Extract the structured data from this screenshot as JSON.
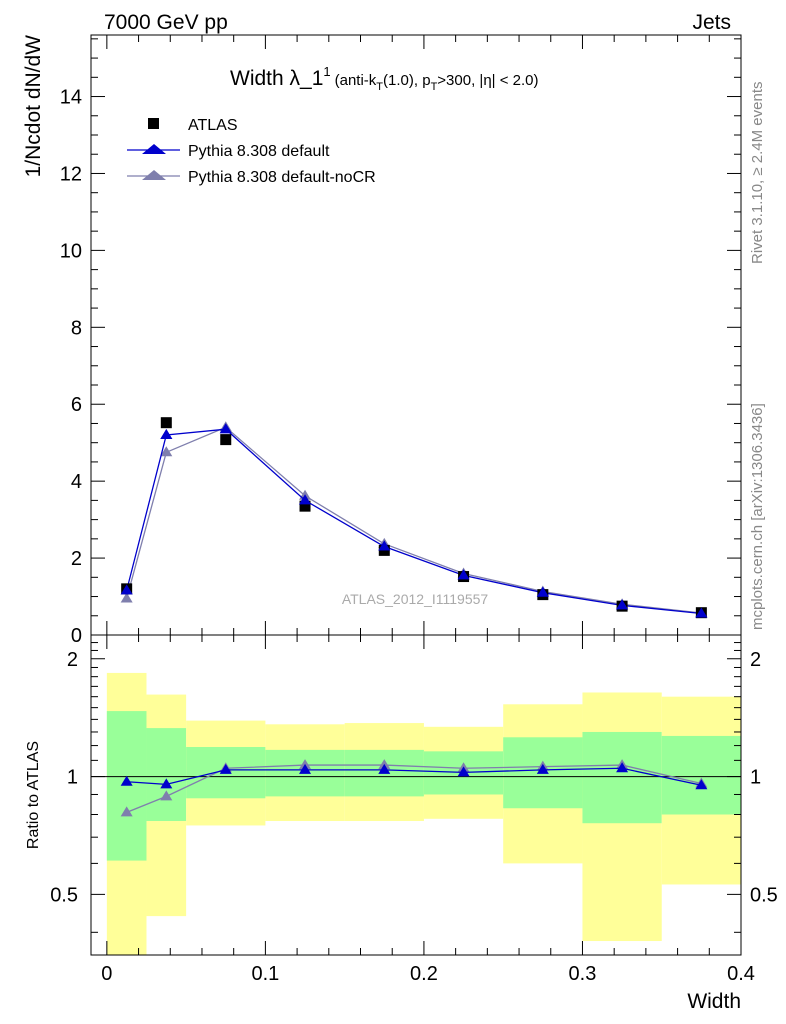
{
  "header": {
    "energy_label": "7000 GeV pp",
    "category_label": "Jets"
  },
  "side_labels": {
    "rivet": "Rivet 3.1.10, ≥ 2.4M events",
    "mcplots": "mcplots.cern.ch [arXiv:1306.3436]"
  },
  "watermark": "ATLAS_2012_I1119557",
  "colors": {
    "atlas": "#000000",
    "pythia_default": "#0000cc",
    "pythia_nocr": "#7f7fad",
    "band_inner": "#99ff99",
    "band_outer": "#ffff99"
  },
  "chart_data": [
    {
      "type": "scatter",
      "title_main": "Width λ_1",
      "title_sup": "1",
      "title_sub_parts": [
        "(anti-k",
        "T",
        "(1.0), p",
        "T",
        ">300, |η| < 2.0)"
      ],
      "ylabel": "1/Ncdot dN/dW",
      "xlim": [
        -0.01,
        0.4
      ],
      "ylim": [
        0,
        15.6
      ],
      "yticks": [
        0,
        2,
        4,
        6,
        8,
        10,
        12,
        14
      ],
      "ytick_labels": [
        "0",
        "2",
        "4",
        "6",
        "8",
        "10",
        "12",
        "14"
      ],
      "legend_position": "top-left",
      "x": [
        0.0125,
        0.0375,
        0.075,
        0.125,
        0.175,
        0.225,
        0.275,
        0.325,
        0.375
      ],
      "bin_edges": [
        0.0,
        0.025,
        0.05,
        0.1,
        0.15,
        0.2,
        0.25,
        0.3,
        0.35,
        0.4
      ],
      "series": [
        {
          "name": "ATLAS",
          "marker": "square",
          "values": [
            1.2,
            5.52,
            5.08,
            3.35,
            2.2,
            1.52,
            1.05,
            0.75,
            0.58
          ]
        },
        {
          "name": "Pythia 8.308 default",
          "marker": "triangle",
          "values": [
            1.16,
            5.2,
            5.35,
            3.5,
            2.3,
            1.55,
            1.1,
            0.77,
            0.56
          ]
        },
        {
          "name": "Pythia 8.308 default-noCR",
          "marker": "triangle",
          "values": [
            0.95,
            4.75,
            5.4,
            3.62,
            2.37,
            1.6,
            1.13,
            0.8,
            0.57
          ]
        }
      ]
    },
    {
      "type": "line",
      "ylabel": "Ratio to ATLAS",
      "xlabel": "Width",
      "xlim": [
        -0.01,
        0.4
      ],
      "ylim": [
        0.35,
        2.3
      ],
      "log_y": true,
      "yticks": [
        0.5,
        1,
        2
      ],
      "ytick_labels": [
        "0.5",
        "1",
        "2"
      ],
      "xticks": [
        0,
        0.1,
        0.2,
        0.3,
        0.4
      ],
      "xtick_labels": [
        "0",
        "0.1",
        "0.2",
        "0.3",
        "0.4"
      ],
      "bin_edges": [
        0.0,
        0.025,
        0.05,
        0.1,
        0.15,
        0.2,
        0.25,
        0.3,
        0.35,
        0.4
      ],
      "band_inner_lo": [
        0.61,
        0.77,
        0.88,
        0.89,
        0.89,
        0.9,
        0.83,
        0.76,
        0.8
      ],
      "band_inner_hi": [
        1.47,
        1.33,
        1.19,
        1.17,
        1.17,
        1.16,
        1.26,
        1.3,
        1.27
      ],
      "band_outer_lo": [
        0.34,
        0.44,
        0.75,
        0.77,
        0.77,
        0.78,
        0.6,
        0.38,
        0.53
      ],
      "band_outer_hi": [
        1.84,
        1.62,
        1.39,
        1.36,
        1.37,
        1.34,
        1.53,
        1.64,
        1.6
      ],
      "x": [
        0.0125,
        0.0375,
        0.075,
        0.125,
        0.175,
        0.225,
        0.275,
        0.325,
        0.375
      ],
      "series": [
        {
          "name": "Pythia 8.308 default",
          "values": [
            0.97,
            0.955,
            1.04,
            1.04,
            1.04,
            1.025,
            1.04,
            1.05,
            0.95
          ]
        },
        {
          "name": "Pythia 8.308 default-noCR",
          "values": [
            0.81,
            0.89,
            1.05,
            1.07,
            1.07,
            1.05,
            1.06,
            1.07,
            0.96
          ]
        }
      ]
    }
  ]
}
